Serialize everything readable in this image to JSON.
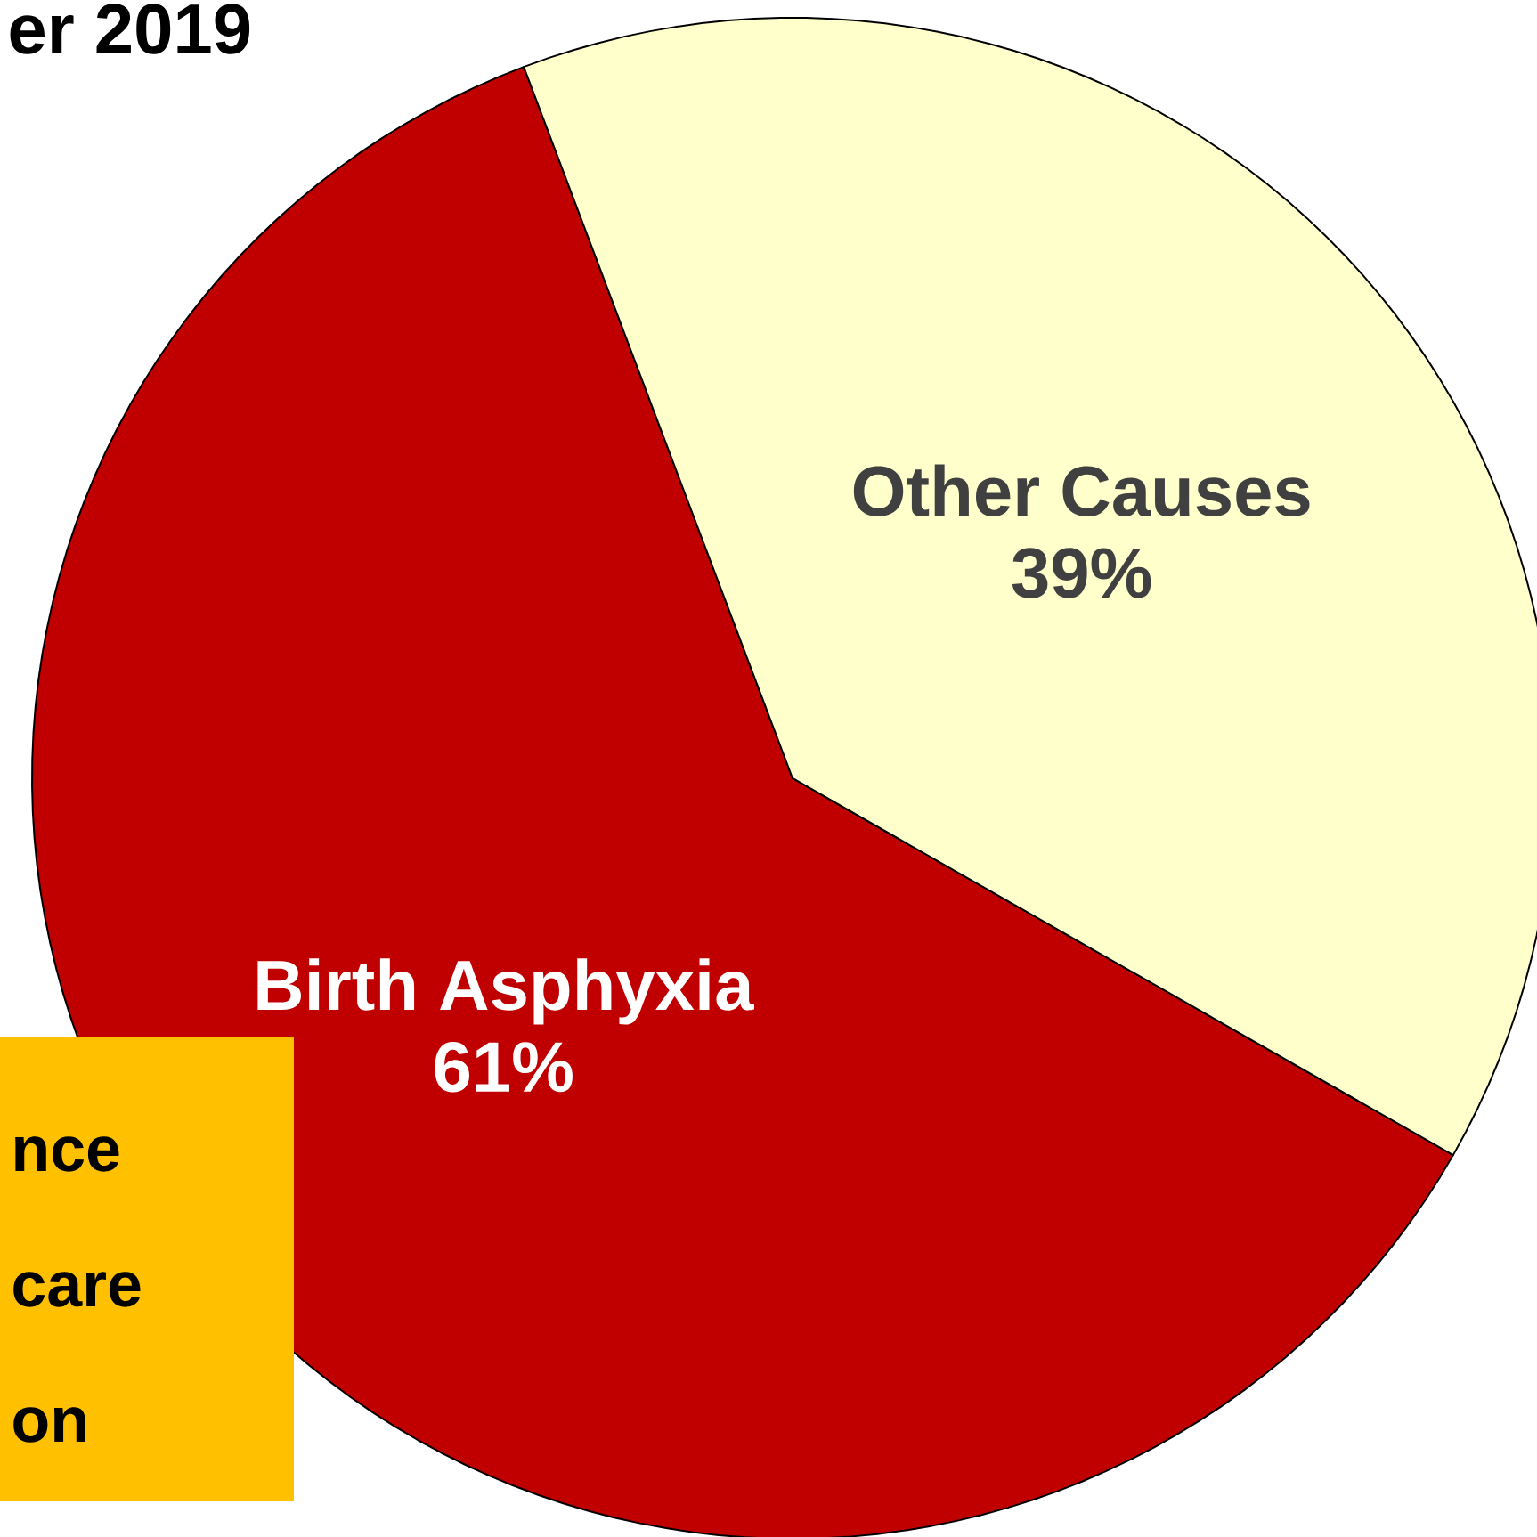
{
  "chart_data": {
    "type": "pie",
    "title": "er 2019",
    "categories": [
      "Birth Asphyxia",
      "Other Causes"
    ],
    "values": [
      61,
      39
    ],
    "value_labels": [
      "61%",
      "39%"
    ],
    "colors": [
      "#c00000",
      "#ffffcc"
    ],
    "data_labels": true,
    "annotations": [
      "nce",
      "care",
      "on"
    ]
  }
}
